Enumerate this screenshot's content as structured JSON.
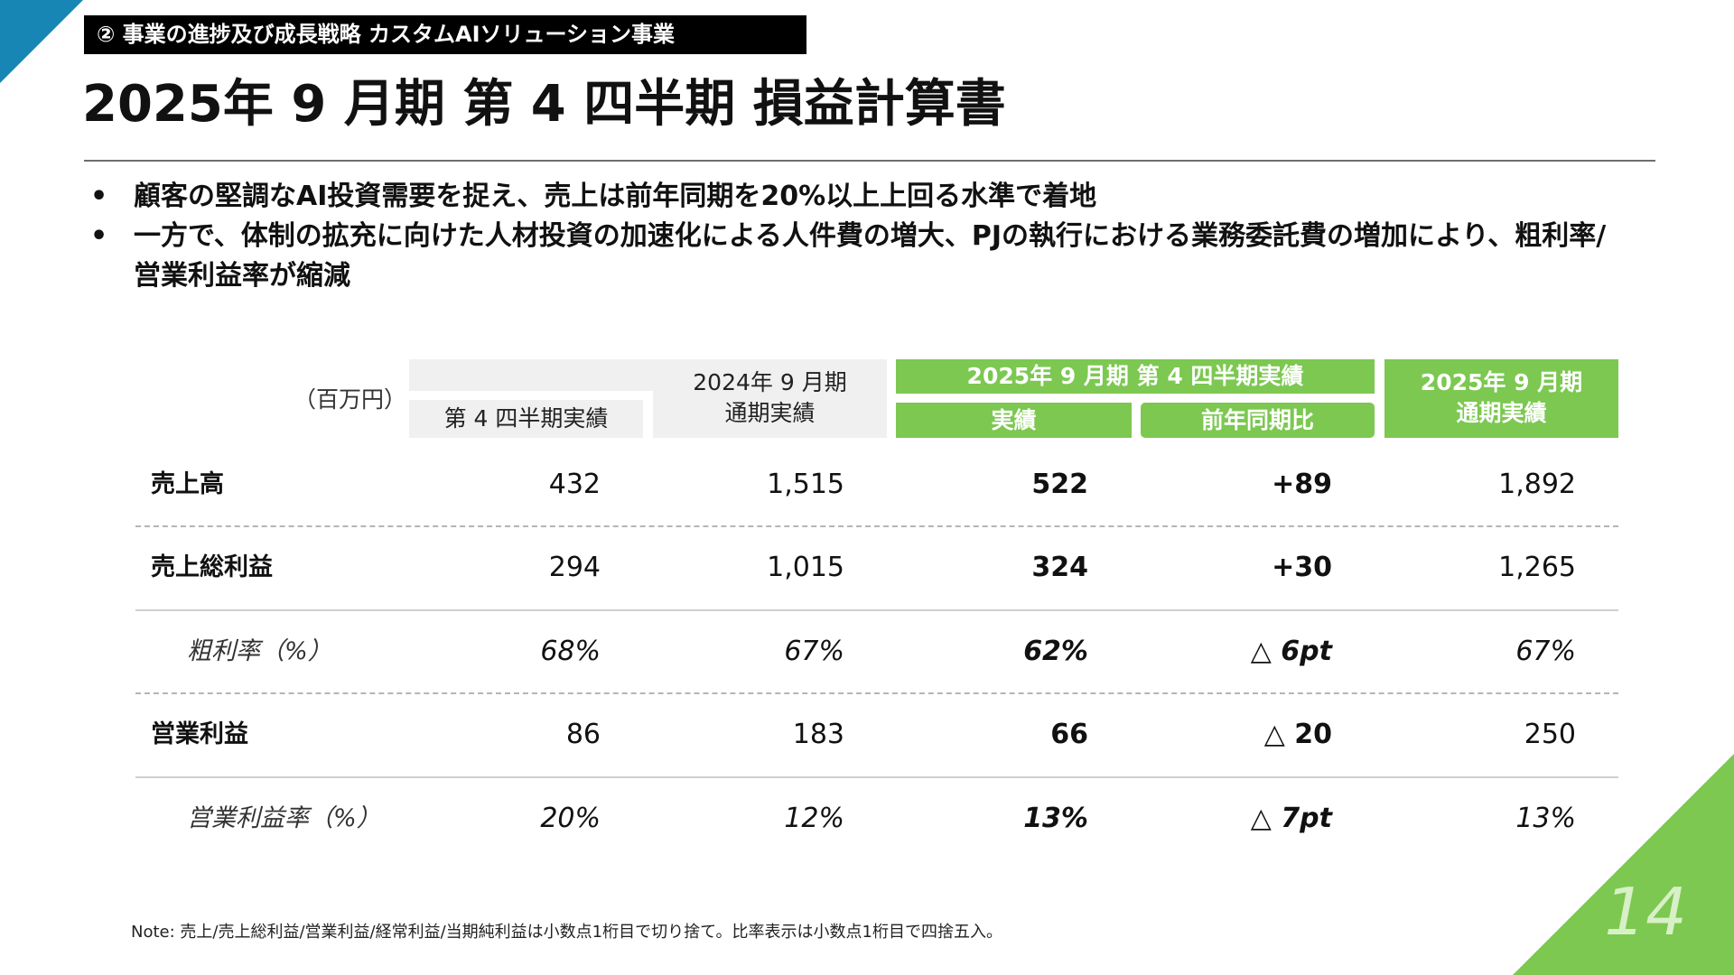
{
  "colors": {
    "accent_green": "#7cc851",
    "accent_blue": "#1786b4",
    "tag_bg": "#000000",
    "header_gray": "#f0f0f0"
  },
  "header": {
    "section_tag": "② 事業の進捗及び成長戦略 カスタムAIソリューション事業",
    "title": "2025年 9 月期 第 4 四半期 損益計算書"
  },
  "bullets": [
    "顧客の堅調なAI投資需要を捉え、売上は前年同期を20%以上上回る水準で着地",
    "一方で、体制の拡充に向けた人材投資の加速化による人件費の増大、PJの執行における業務委託費の増加により、粗利率/営業利益率が縮減"
  ],
  "bullet_marker": "•",
  "table": {
    "unit": "（百万円）",
    "headers": {
      "q4_prev": "第 4 四半期実績",
      "fy_prev_line1": "2024年 9 月期",
      "fy_prev_line2": "通期実績",
      "q4_curr_group": "2025年 9 月期 第 4 四半期実績",
      "actual": "実績",
      "yoy": "前年同期比",
      "fy_curr_line1": "2025年 9 月期",
      "fy_curr_line2": "通期実績"
    },
    "rows": [
      {
        "label": "売上高",
        "q4_prev": "432",
        "fy_prev": "1,515",
        "actual": "522",
        "yoy": "+89",
        "fy_curr": "1,892"
      },
      {
        "label": "売上総利益",
        "q4_prev": "294",
        "fy_prev": "1,015",
        "actual": "324",
        "yoy": "+30",
        "fy_curr": "1,265"
      },
      {
        "label": "粗利率（%）",
        "q4_prev": "68%",
        "fy_prev": "67%",
        "actual": "62%",
        "yoy": "△ 6pt",
        "fy_curr": "67%"
      },
      {
        "label": "営業利益",
        "q4_prev": "86",
        "fy_prev": "183",
        "actual": "66",
        "yoy": "△ 20",
        "fy_curr": "250"
      },
      {
        "label": "営業利益率（%）",
        "q4_prev": "20%",
        "fy_prev": "12%",
        "actual": "13%",
        "yoy": "△ 7pt",
        "fy_curr": "13%"
      }
    ]
  },
  "note": "Note: 売上/売上総利益/営業利益/経常利益/当期純利益は小数点1桁目で切り捨て。比率表示は小数点1桁目で四捨五入。",
  "page_number": "14"
}
